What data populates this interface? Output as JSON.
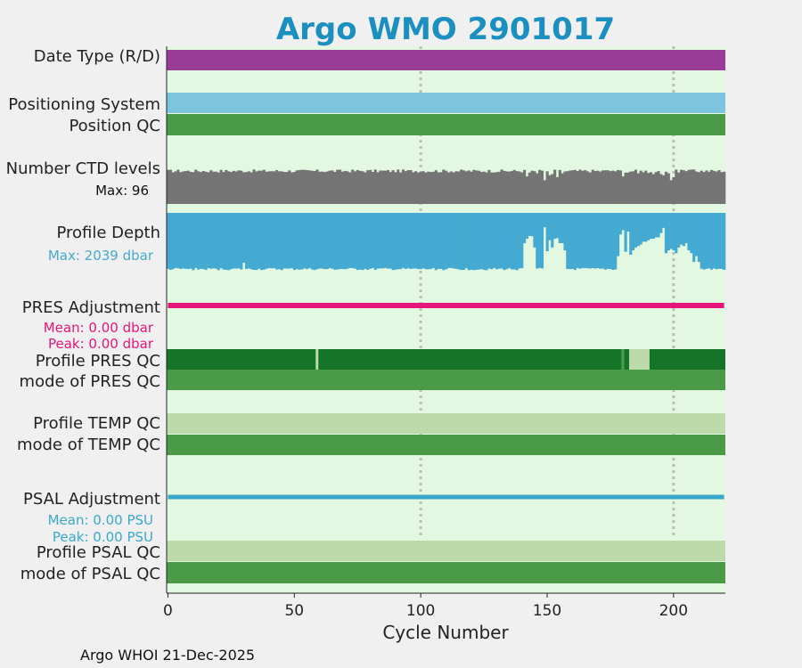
{
  "chart_data": {
    "type": "status-timeline",
    "title": "Argo WMO 2901017",
    "xlabel": "Cycle Number",
    "xlim": [
      -0.5,
      220.5
    ],
    "xticks": [
      0,
      50,
      100,
      150,
      200
    ],
    "xticklabels": [
      "0",
      "50",
      "100",
      "150",
      "200"
    ],
    "vertical_reference_lines": [
      100,
      200
    ],
    "footer": "Argo WHOI 21-Dec-2025",
    "colors": {
      "title": "#1a8fc0",
      "plot_background": "#e3f8e0",
      "figure_background": "#f0f0f0",
      "date_type": "#9a3b98",
      "positioning_system": "#7dc4df",
      "qc_good": "#4a9a48",
      "qc_dark": "#157428",
      "qc_light": "#bddaaa",
      "ctd_levels": "#747474",
      "profile_depth": "#44aad1",
      "pres_adjustment": "#e6157a",
      "psal_adjustment": "#3aa8cc",
      "grid": "#bdbdbd"
    },
    "rows": {
      "date_type": {
        "label": "Date Type (R/D)"
      },
      "positioning_system": {
        "label": "Positioning System"
      },
      "position_qc": {
        "label": "Position QC"
      },
      "ctd_levels": {
        "label": "Number CTD levels",
        "max_label": "Max: 96",
        "max": 96,
        "baseline_fraction": 0.86,
        "dips": [
          [
            142,
            0.72
          ],
          [
            143,
            0.82
          ],
          [
            146,
            0.8
          ],
          [
            149,
            0.62
          ],
          [
            151,
            0.75
          ],
          [
            152,
            0.78
          ],
          [
            154,
            0.7
          ],
          [
            156,
            0.8
          ],
          [
            174,
            0.88
          ],
          [
            176,
            0.87
          ],
          [
            180,
            0.72
          ],
          [
            182,
            0.82
          ],
          [
            186,
            0.8
          ],
          [
            190,
            0.81
          ],
          [
            192,
            0.78
          ],
          [
            195,
            0.78
          ],
          [
            196,
            0.75
          ],
          [
            198,
            0.8
          ],
          [
            199,
            0.62
          ],
          [
            200,
            0.7
          ],
          [
            202,
            0.82
          ],
          [
            204,
            0.88
          ],
          [
            206,
            0.89
          ],
          [
            208,
            0.9
          ]
        ]
      },
      "profile_depth": {
        "label": "Profile Depth",
        "max_label": "Max: 2039 dbar",
        "max_dbar": 2039,
        "typical_dbar": 1950,
        "shallow_profiles": [
          [
            30,
            1730
          ],
          [
            141,
            1050
          ],
          [
            142,
            900
          ],
          [
            143,
            800
          ],
          [
            144,
            810
          ],
          [
            145,
            1200
          ],
          [
            149,
            500
          ],
          [
            150,
            1330
          ],
          [
            151,
            950
          ],
          [
            152,
            1200
          ],
          [
            153,
            900
          ],
          [
            154,
            880
          ],
          [
            155,
            1050
          ],
          [
            156,
            1050
          ],
          [
            157,
            1300
          ],
          [
            178,
            1500
          ],
          [
            179,
            750
          ],
          [
            180,
            600
          ],
          [
            181,
            1350
          ],
          [
            182,
            650
          ],
          [
            183,
            1450
          ],
          [
            184,
            1300
          ],
          [
            185,
            1200
          ],
          [
            186,
            1150
          ],
          [
            187,
            1100
          ],
          [
            188,
            1000
          ],
          [
            189,
            1000
          ],
          [
            190,
            950
          ],
          [
            191,
            900
          ],
          [
            192,
            900
          ],
          [
            193,
            850
          ],
          [
            194,
            850
          ],
          [
            195,
            700
          ],
          [
            196,
            520
          ],
          [
            197,
            1400
          ],
          [
            198,
            1300
          ],
          [
            199,
            1250
          ],
          [
            200,
            1300
          ],
          [
            201,
            1400
          ],
          [
            202,
            1200
          ],
          [
            203,
            1100
          ],
          [
            204,
            1150
          ],
          [
            205,
            1050
          ],
          [
            206,
            1300
          ],
          [
            207,
            1400
          ],
          [
            208,
            1700
          ],
          [
            209,
            1500
          ],
          [
            210,
            1700
          ]
        ]
      },
      "pres_adjustment": {
        "label": "PRES Adjustment",
        "mean_label": "Mean: 0.00 dbar",
        "peak_label": "Peak: 0.00 dbar",
        "mean": 0.0,
        "peak": 0.0
      },
      "profile_pres_qc": {
        "label": "Profile PRES QC",
        "segments": [
          [
            0,
            59,
            "A"
          ],
          [
            59,
            60,
            "C"
          ],
          [
            60,
            180,
            "A"
          ],
          [
            180,
            181,
            "good"
          ],
          [
            181,
            183,
            "A"
          ],
          [
            183,
            191,
            "C"
          ],
          [
            191,
            221,
            "A"
          ]
        ]
      },
      "mode_pres_qc": {
        "label": "mode of PRES QC"
      },
      "profile_temp_qc": {
        "label": "Profile TEMP QC"
      },
      "mode_temp_qc": {
        "label": "mode of TEMP QC"
      },
      "psal_adjustment": {
        "label": "PSAL Adjustment",
        "mean_label": "Mean: 0.00 PSU",
        "peak_label": "Peak: 0.00 PSU",
        "mean": 0.0,
        "peak": 0.0
      },
      "profile_psal_qc": {
        "label": "Profile PSAL QC"
      },
      "mode_psal_qc": {
        "label": "mode of PSAL QC"
      }
    }
  }
}
